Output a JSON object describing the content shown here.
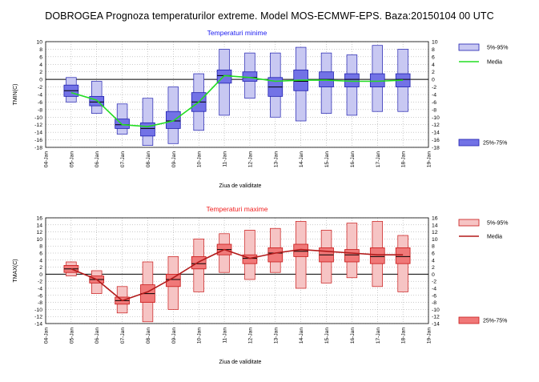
{
  "title": "DOBROGEA  Prognoza temperaturilor extreme.  Model MOS-ECMWF-EPS. Baza:20150104 00 UTC",
  "chart_data": [
    {
      "type": "box",
      "title": "Temperaturi minime",
      "xlabel": "Ziua de validitate",
      "ylabel": "TMIN(C)",
      "ylim": [
        -18,
        10
      ],
      "yticks": [
        10,
        8,
        6,
        4,
        2,
        0,
        -2,
        -4,
        -6,
        -8,
        -10,
        -12,
        -14,
        -16,
        -18
      ],
      "categories": [
        "04-Jan",
        "05-Jan",
        "06-Jan",
        "07-Jan",
        "08-Jan",
        "09-Jan",
        "10-Jan",
        "11-Jan",
        "12-Jan",
        "13-Jan",
        "14-Jan",
        "15-Jan",
        "16-Jan",
        "17-Jan",
        "18-Jan",
        "19-Jan"
      ],
      "grid": true,
      "colors": {
        "box": "#7272e6",
        "whisker_box": "#c8c8f2",
        "stroke": "#2020b0",
        "median": "#000000",
        "mean_line": "#22dd22",
        "title": "#1a1af0"
      },
      "legend": {
        "whisker_label": "5%-95%",
        "mean_label": "Media",
        "box_label": "25%-75%"
      },
      "boxes": [
        {
          "x": "05-Jan",
          "p5": -6.0,
          "p25": -4.5,
          "median": -3.0,
          "p75": -1.5,
          "p95": 0.5
        },
        {
          "x": "06-Jan",
          "p5": -9.0,
          "p25": -7.0,
          "median": -6.0,
          "p75": -4.5,
          "p95": -0.5
        },
        {
          "x": "07-Jan",
          "p5": -14.5,
          "p25": -13.0,
          "median": -12.0,
          "p75": -10.5,
          "p95": -6.5
        },
        {
          "x": "08-Jan",
          "p5": -17.5,
          "p25": -15.0,
          "median": -13.0,
          "p75": -11.5,
          "p95": -5.0
        },
        {
          "x": "09-Jan",
          "p5": -17.0,
          "p25": -13.0,
          "median": -11.0,
          "p75": -8.5,
          "p95": -2.0
        },
        {
          "x": "10-Jan",
          "p5": -13.5,
          "p25": -8.5,
          "median": -6.0,
          "p75": -3.5,
          "p95": 1.5
        },
        {
          "x": "11-Jan",
          "p5": -9.5,
          "p25": -1.0,
          "median": 1.0,
          "p75": 2.5,
          "p95": 8.0
        },
        {
          "x": "12-Jan",
          "p5": -5.0,
          "p25": -0.5,
          "median": 0.5,
          "p75": 2.0,
          "p95": 7.0
        },
        {
          "x": "13-Jan",
          "p5": -10.0,
          "p25": -4.5,
          "median": -2.0,
          "p75": 0.5,
          "p95": 7.0
        },
        {
          "x": "14-Jan",
          "p5": -11.0,
          "p25": -3.0,
          "median": -0.5,
          "p75": 2.5,
          "p95": 8.5
        },
        {
          "x": "15-Jan",
          "p5": -9.0,
          "p25": -2.0,
          "median": 0.0,
          "p75": 2.0,
          "p95": 7.0
        },
        {
          "x": "16-Jan",
          "p5": -9.5,
          "p25": -2.0,
          "median": 0.0,
          "p75": 1.5,
          "p95": 6.5
        },
        {
          "x": "17-Jan",
          "p5": -8.5,
          "p25": -2.0,
          "median": -0.5,
          "p75": 1.5,
          "p95": 9.0
        },
        {
          "x": "18-Jan",
          "p5": -8.5,
          "p25": -2.0,
          "median": 0.0,
          "p75": 1.5,
          "p95": 8.0
        }
      ],
      "mean": {
        "x": [
          "05-Jan",
          "06-Jan",
          "07-Jan",
          "08-Jan",
          "09-Jan",
          "10-Jan",
          "11-Jan",
          "12-Jan",
          "13-Jan",
          "14-Jan",
          "15-Jan",
          "16-Jan",
          "17-Jan",
          "18-Jan"
        ],
        "y": [
          -3.5,
          -5.5,
          -12.0,
          -12.5,
          -11.0,
          -6.0,
          1.0,
          0.5,
          -0.5,
          -0.2,
          -0.2,
          -0.5,
          -0.5,
          -0.2
        ]
      }
    },
    {
      "type": "box",
      "title": "Temperaturi maxime",
      "xlabel": "Ziua de validitate",
      "ylabel": "TMAX(C)",
      "ylim": [
        -14,
        16
      ],
      "yticks": [
        16,
        14,
        12,
        10,
        8,
        6,
        4,
        2,
        0,
        -2,
        -4,
        -6,
        -8,
        -10,
        -12,
        -14
      ],
      "categories": [
        "04-Jan",
        "05-Jan",
        "06-Jan",
        "07-Jan",
        "08-Jan",
        "09-Jan",
        "10-Jan",
        "11-Jan",
        "12-Jan",
        "13-Jan",
        "14-Jan",
        "15-Jan",
        "16-Jan",
        "17-Jan",
        "18-Jan",
        "19-Jan"
      ],
      "grid": true,
      "colors": {
        "box": "#f07878",
        "whisker_box": "#f6c4c4",
        "stroke": "#c81818",
        "median": "#000000",
        "mean_line": "#b31a1a",
        "title": "#f01e1e"
      },
      "legend": {
        "whisker_label": "5%-95%",
        "mean_label": "Media",
        "box_label": "25%-75%"
      },
      "boxes": [
        {
          "x": "05-Jan",
          "p5": -0.5,
          "p25": 0.5,
          "median": 1.5,
          "p75": 2.5,
          "p95": 3.5
        },
        {
          "x": "06-Jan",
          "p5": -5.5,
          "p25": -2.5,
          "median": -1.5,
          "p75": -0.5,
          "p95": 1.0
        },
        {
          "x": "07-Jan",
          "p5": -11.0,
          "p25": -8.5,
          "median": -7.5,
          "p75": -6.5,
          "p95": -3.5
        },
        {
          "x": "08-Jan",
          "p5": -13.5,
          "p25": -8.0,
          "median": -5.5,
          "p75": -3.0,
          "p95": 3.5
        },
        {
          "x": "09-Jan",
          "p5": -10.0,
          "p25": -3.5,
          "median": -1.5,
          "p75": 0.0,
          "p95": 5.0
        },
        {
          "x": "10-Jan",
          "p5": -5.0,
          "p25": 1.5,
          "median": 3.0,
          "p75": 5.0,
          "p95": 10.0
        },
        {
          "x": "11-Jan",
          "p5": 0.5,
          "p25": 5.5,
          "median": 7.0,
          "p75": 8.5,
          "p95": 11.5
        },
        {
          "x": "12-Jan",
          "p5": -1.5,
          "p25": 3.0,
          "median": 4.5,
          "p75": 5.5,
          "p95": 12.5
        },
        {
          "x": "13-Jan",
          "p5": 0.5,
          "p25": 3.5,
          "median": 6.0,
          "p75": 7.5,
          "p95": 13.0
        },
        {
          "x": "14-Jan",
          "p5": -4.0,
          "p25": 5.0,
          "median": 6.5,
          "p75": 8.5,
          "p95": 15.0
        },
        {
          "x": "15-Jan",
          "p5": -2.5,
          "p25": 3.5,
          "median": 5.5,
          "p75": 7.5,
          "p95": 12.5
        },
        {
          "x": "16-Jan",
          "p5": -1.0,
          "p25": 3.5,
          "median": 5.5,
          "p75": 7.0,
          "p95": 14.5
        },
        {
          "x": "17-Jan",
          "p5": -3.5,
          "p25": 3.0,
          "median": 5.0,
          "p75": 7.5,
          "p95": 15.0
        },
        {
          "x": "18-Jan",
          "p5": -5.0,
          "p25": 3.0,
          "median": 5.0,
          "p75": 7.5,
          "p95": 11.0
        }
      ],
      "mean": {
        "x": [
          "05-Jan",
          "06-Jan",
          "07-Jan",
          "08-Jan",
          "09-Jan",
          "10-Jan",
          "11-Jan",
          "12-Jan",
          "13-Jan",
          "14-Jan",
          "15-Jan",
          "16-Jan",
          "17-Jan",
          "18-Jan"
        ],
        "y": [
          1.5,
          -1.5,
          -7.5,
          -5.0,
          -1.0,
          3.5,
          7.0,
          4.5,
          6.0,
          7.0,
          6.5,
          6.0,
          5.5,
          5.5
        ]
      }
    }
  ]
}
